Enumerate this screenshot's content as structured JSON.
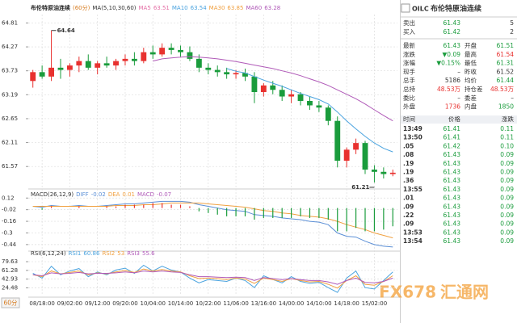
{
  "chart_data": [
    {
      "type": "candlestick",
      "title": "布伦特原油连续",
      "subtitle": "(60分)",
      "ma_label": "MA(5,10,30,60)",
      "categories": [
        null,
        "08/18:00",
        null,
        null,
        "09/02:00",
        null,
        null,
        "09/12:00",
        null,
        null,
        "09/20:00",
        null,
        null,
        "10/04:00",
        null,
        null,
        "10/14:00",
        null,
        null,
        "10/22:00",
        null,
        null,
        "11/06:00",
        null,
        null,
        "13/16:00",
        null,
        null,
        "14/00:00",
        null,
        null,
        "14/10:00",
        null,
        null,
        "14/18:00",
        null,
        null,
        "15/02:00",
        null,
        null
      ],
      "open": [
        63.5,
        63.7,
        63.6,
        63.8,
        63.75,
        63.85,
        63.95,
        63.8,
        63.9,
        63.85,
        63.95,
        64.0,
        63.95,
        64.15,
        64.1,
        64.25,
        64.2,
        64.15,
        64.0,
        63.8,
        63.75,
        63.7,
        63.65,
        63.68,
        63.6,
        63.25,
        63.4,
        63.3,
        63.15,
        63.2,
        63.05,
        62.95,
        62.9,
        62.6,
        61.7,
        61.95,
        62.1,
        61.5,
        61.45,
        61.4
      ],
      "high": [
        63.75,
        63.85,
        64.64,
        64.0,
        63.9,
        64.05,
        64.1,
        63.95,
        64.05,
        64.0,
        64.1,
        64.15,
        64.25,
        64.3,
        64.35,
        64.35,
        64.3,
        64.28,
        64.1,
        63.9,
        63.85,
        63.8,
        63.75,
        63.78,
        63.7,
        63.45,
        63.5,
        63.4,
        63.3,
        63.25,
        63.15,
        63.05,
        62.95,
        62.7,
        62.0,
        62.2,
        62.15,
        61.6,
        61.55,
        61.5
      ],
      "low": [
        63.35,
        63.55,
        63.5,
        63.55,
        63.6,
        63.7,
        63.75,
        63.65,
        63.8,
        63.75,
        63.85,
        63.85,
        63.9,
        64.0,
        64.05,
        64.1,
        64.05,
        63.95,
        63.7,
        63.65,
        63.6,
        63.55,
        63.55,
        63.5,
        63.0,
        63.15,
        63.2,
        63.05,
        63.0,
        62.95,
        62.85,
        62.8,
        62.5,
        61.55,
        61.55,
        61.85,
        61.4,
        61.21,
        61.3,
        61.35
      ],
      "close": [
        63.7,
        63.6,
        63.8,
        63.75,
        63.85,
        63.95,
        63.8,
        63.9,
        63.85,
        63.95,
        64.0,
        63.95,
        64.15,
        64.1,
        64.25,
        64.2,
        64.15,
        64.0,
        63.8,
        63.75,
        63.7,
        63.65,
        63.68,
        63.6,
        63.25,
        63.4,
        63.3,
        63.15,
        63.2,
        63.05,
        62.95,
        62.9,
        62.6,
        61.7,
        61.95,
        62.1,
        61.5,
        61.45,
        61.4,
        61.43
      ],
      "up_color": "#e8312f",
      "down_color": "#1a9c3c",
      "ma": [
        {
          "name": "MA5",
          "value": 63.51,
          "color": "#e46fa5"
        },
        {
          "name": "MA10",
          "value": 63.54,
          "color": "#4aa3df",
          "values": [
            null,
            null,
            null,
            null,
            null,
            null,
            null,
            null,
            null,
            null,
            null,
            null,
            null,
            null,
            null,
            null,
            null,
            null,
            null,
            null,
            null,
            63.78,
            63.72,
            63.68,
            63.6,
            63.52,
            63.45,
            63.38,
            63.3,
            63.22,
            63.15,
            63.08,
            62.98,
            62.8,
            62.6,
            62.42,
            62.25,
            62.1,
            61.98,
            61.9
          ]
        },
        {
          "name": "MA30",
          "value": 63.85,
          "color": "#f0a040"
        },
        {
          "name": "MA60",
          "value": 63.28,
          "color": "#b05ab8",
          "values": [
            null,
            null,
            null,
            null,
            null,
            null,
            null,
            null,
            null,
            null,
            null,
            null,
            null,
            63.95,
            64.0,
            64.02,
            64.04,
            64.05,
            64.04,
            64.02,
            64.0,
            63.97,
            63.94,
            63.9,
            63.86,
            63.82,
            63.78,
            63.73,
            63.68,
            63.62,
            63.55,
            63.48,
            63.4,
            63.3,
            63.2,
            63.1,
            62.98,
            62.85,
            62.72,
            62.6
          ]
        }
      ],
      "high_label": 64.64,
      "low_label": 61.21,
      "ylim": [
        61.1,
        65.0
      ],
      "yticks": [
        64.81,
        64.27,
        63.73,
        63.19,
        62.65,
        62.11,
        61.57
      ],
      "grid": true
    },
    {
      "type": "macd",
      "title": "MACD(26,12,9)",
      "up_color": "#e8312f",
      "down_color": "#1a9c3c",
      "series": [
        {
          "name": "DIFF",
          "value": -0.02,
          "color": "#5b8fd6",
          "values": [
            0.02,
            0.01,
            0.03,
            0.02,
            0.02,
            0.03,
            0.02,
            0.02,
            0.03,
            0.04,
            0.05,
            0.05,
            0.06,
            0.07,
            0.08,
            0.08,
            0.08,
            0.07,
            0.04,
            0.02,
            0.0,
            -0.02,
            -0.03,
            -0.04,
            -0.08,
            -0.09,
            -0.1,
            -0.12,
            -0.13,
            -0.14,
            -0.16,
            -0.17,
            -0.2,
            -0.3,
            -0.34,
            -0.35,
            -0.4,
            -0.44,
            -0.46,
            -0.47
          ]
        },
        {
          "name": "DEA",
          "value": 0.01,
          "color": "#f0a040",
          "values": [
            0.02,
            0.02,
            0.02,
            0.02,
            0.02,
            0.02,
            0.02,
            0.02,
            0.02,
            0.03,
            0.03,
            0.03,
            0.04,
            0.04,
            0.05,
            0.06,
            0.06,
            0.06,
            0.06,
            0.05,
            0.04,
            0.03,
            0.02,
            0.01,
            -0.01,
            -0.03,
            -0.04,
            -0.06,
            -0.07,
            -0.09,
            -0.1,
            -0.11,
            -0.13,
            -0.16,
            -0.2,
            -0.23,
            -0.26,
            -0.3,
            -0.33,
            -0.36
          ]
        },
        {
          "name": "MACD",
          "value": -0.07,
          "color": "#b05ab8",
          "style": "bar",
          "values": [
            0,
            -0.02,
            0.02,
            0,
            0,
            0.02,
            0,
            0,
            0.02,
            0.02,
            0.04,
            0.04,
            0.04,
            0.06,
            0.06,
            0.04,
            0.04,
            0.02,
            -0.04,
            -0.06,
            -0.08,
            -0.1,
            -0.1,
            -0.1,
            -0.14,
            -0.12,
            -0.12,
            -0.12,
            -0.12,
            -0.1,
            -0.12,
            -0.12,
            -0.14,
            -0.28,
            -0.28,
            -0.24,
            -0.28,
            -0.28,
            -0.26,
            -0.22
          ]
        }
      ],
      "ylim": [
        -0.49,
        0.21
      ],
      "yticks": [
        0.12,
        -0.02,
        -0.16,
        -0.3,
        -0.44
      ],
      "grid": true
    },
    {
      "type": "rsi",
      "title": "RSI(6,12,24)",
      "series": [
        {
          "name": "RSI1",
          "value": 60.86,
          "color": "#4aa3df",
          "values": [
            55,
            45,
            70,
            52,
            60,
            65,
            48,
            58,
            52,
            62,
            66,
            55,
            72,
            60,
            70,
            62,
            58,
            45,
            35,
            42,
            40,
            38,
            45,
            40,
            25,
            50,
            42,
            35,
            48,
            38,
            34,
            36,
            25,
            15,
            45,
            60,
            25,
            22,
            40,
            58
          ]
        },
        {
          "name": "RSI2",
          "value": 53.0,
          "color": "#f0a040",
          "values": [
            52,
            48,
            60,
            54,
            57,
            60,
            52,
            56,
            54,
            58,
            61,
            57,
            64,
            60,
            63,
            60,
            58,
            50,
            44,
            45,
            44,
            42,
            45,
            43,
            34,
            45,
            42,
            38,
            44,
            40,
            37,
            38,
            32,
            24,
            40,
            50,
            32,
            30,
            38,
            50
          ]
        },
        {
          "name": "RSI3",
          "value": 55.6,
          "color": "#b05ab8",
          "values": [
            52,
            50,
            56,
            54,
            55,
            57,
            54,
            55,
            55,
            56,
            58,
            56,
            60,
            58,
            60,
            58,
            57,
            52,
            48,
            48,
            47,
            46,
            47,
            46,
            40,
            46,
            44,
            42,
            44,
            42,
            40,
            40,
            37,
            32,
            40,
            45,
            36,
            35,
            38,
            45
          ]
        }
      ],
      "ylim": [
        10,
        95
      ],
      "yticks": [
        79.63,
        61.28,
        42.93,
        24.48
      ],
      "grid": true
    }
  ],
  "period_button": "60分",
  "watermark": [
    "FX678",
    "汇通网"
  ],
  "quote": {
    "code": "OILC",
    "name": "布伦特原油连续",
    "bidask": [
      [
        "卖出",
        "61.43",
        "5"
      ],
      [
        "买入",
        "61.42",
        "2"
      ]
    ],
    "stats": [
      [
        "最新",
        "61.43",
        "开盘",
        "61.51"
      ],
      [
        "涨跌",
        "▼0.09",
        "最高",
        "61.54"
      ],
      [
        "涨幅",
        "▼0.15%",
        "最低",
        "61.31"
      ],
      [
        "现手",
        "–",
        "昨收",
        "61.52"
      ],
      [
        "总手",
        "5186",
        "均价",
        "61.44"
      ],
      [
        "总持",
        "48.53万",
        "持仓差",
        "48.53万"
      ],
      [
        "委比",
        "–",
        "委差",
        "–"
      ],
      [
        "外盘",
        "1736",
        "内盘",
        "1850"
      ]
    ],
    "ticks_header": [
      "时间",
      "价格",
      "涨跌"
    ],
    "ticks": [
      [
        "13:49",
        "61.41",
        "0.11"
      ],
      [
        "13:50",
        "61.41",
        "0.11"
      ],
      [
        ".05",
        "61.42",
        "0.10"
      ],
      [
        ".08",
        "61.43",
        "0.09"
      ],
      [
        ".19",
        "61.43",
        "0.09"
      ],
      [
        ".19",
        "61.43",
        "0.09"
      ],
      [
        ".36",
        "61.43",
        "0.09"
      ],
      [
        "13:55",
        "61.43",
        "0.09"
      ],
      [
        ".01",
        "61.43",
        "0.09"
      ],
      [
        ".09",
        "61.43",
        "0.09"
      ],
      [
        ".22",
        "61.43",
        "0.09"
      ],
      [
        ".09",
        "61.43",
        "0.09"
      ],
      [
        "13:53",
        "61.43",
        "0.09"
      ],
      [
        "13:54",
        "61.43",
        "0.09"
      ]
    ]
  }
}
